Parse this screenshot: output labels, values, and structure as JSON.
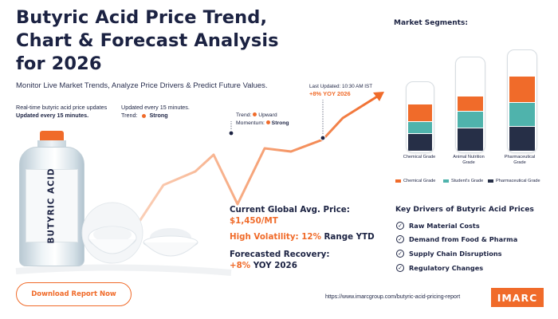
{
  "header": {
    "title_line1": "Butyric Acid Price Trend,",
    "title_line2": "Chart & Forecast Analysis",
    "title_line3": "for 2026",
    "subtitle": "Monitor Live Market Trends, Analyze Price Drivers & Predict Future Values."
  },
  "realtime": {
    "line1": "Real-time butyric acid price updates",
    "line2": "Updated every 15 minutes."
  },
  "update_box": {
    "line1": "Updated every 15 minutes.",
    "trend_label": "Trend:",
    "trend_value": "Strong"
  },
  "trend_annotation": {
    "trend_label": "Trend:",
    "trend_value": "Upward",
    "momentum_label": "Momentum:",
    "momentum_value": "Strong"
  },
  "last_updated": {
    "label": "Last Updated: 10:30 AM IST",
    "yoy": "+8% YOY 2026"
  },
  "product": {
    "bottle_label": "BUTYRIC ACID"
  },
  "price": {
    "current_label": "Current Global Avg. Price:",
    "current_value": "$1,450/MT",
    "volatility_label": "High Volatility: 12%",
    "volatility_suffix": "Range YTD",
    "recovery_label": "Forecasted Recovery:",
    "recovery_value": "+8%",
    "recovery_suffix": "YOY 2026"
  },
  "segments": {
    "title": "Market Segments:",
    "cylinders": [
      {
        "label_line1": "Chemical Grade",
        "label_line2": "",
        "orange": 0.24,
        "teal": 0.16,
        "navy": 0.24
      },
      {
        "label_line1": "Animal Nutrition",
        "label_line2": "Grade",
        "orange": 0.15,
        "teal": 0.17,
        "navy": 0.24
      },
      {
        "label_line1": "Pharmaceutical",
        "label_line2": "Grade",
        "orange": 0.25,
        "teal": 0.23,
        "navy": 0.24
      }
    ],
    "legend": [
      {
        "label": "Chemical Grade",
        "color": "#f06b2a"
      },
      {
        "label": "Student's Grade",
        "color": "#4fb3ac"
      },
      {
        "label": "Pharmaceutical Grade",
        "color": "#262f47"
      }
    ]
  },
  "drivers": {
    "title": "Key Drivers of Butyric Acid Prices",
    "items": [
      "Raw Material Costs",
      "Demand from Food & Pharma",
      "Supply Chain Disruptions",
      "Regulatory Changes"
    ]
  },
  "footer": {
    "download_label": "Download Report Now",
    "url": "https://www.imarcgroup.com/butyric-acid-pricing-report",
    "logo_text": "IMARC"
  },
  "colors": {
    "accent": "#f06b2a",
    "navy": "#1b2242",
    "teal": "#4fb3ac"
  }
}
